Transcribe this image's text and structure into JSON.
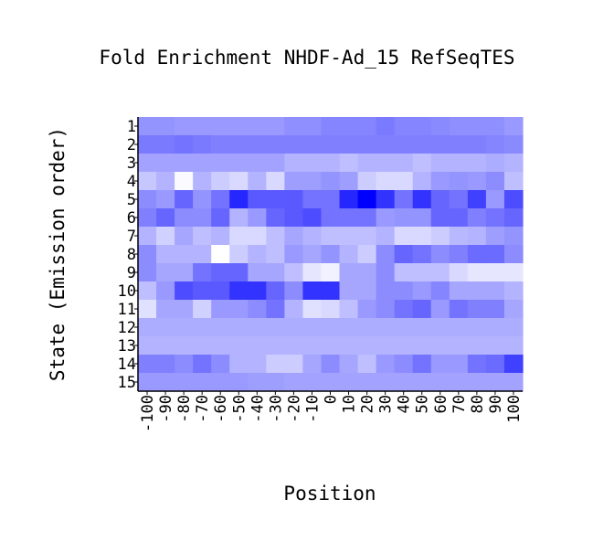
{
  "chart_data": {
    "type": "heatmap",
    "title": "Fold Enrichment NHDF-Ad_15 RefSeqTES",
    "xlabel": "Position",
    "ylabel": "State (Emission order)",
    "x": [
      "-100",
      "-90",
      "-80",
      "-70",
      "-60",
      "-50",
      "-40",
      "-30",
      "-20",
      "-10",
      "0",
      "10",
      "20",
      "30",
      "40",
      "50",
      "60",
      "70",
      "80",
      "90",
      "100"
    ],
    "y": [
      "1",
      "2",
      "3",
      "4",
      "5",
      "6",
      "7",
      "8",
      "9",
      "10",
      "11",
      "12",
      "13",
      "14",
      "15"
    ],
    "colorscale": {
      "low": "#ffffff",
      "high": "#0000ff"
    },
    "values": [
      [
        0.42,
        0.42,
        0.4,
        0.4,
        0.4,
        0.4,
        0.4,
        0.4,
        0.44,
        0.44,
        0.48,
        0.48,
        0.48,
        0.52,
        0.48,
        0.48,
        0.46,
        0.44,
        0.44,
        0.44,
        0.4
      ],
      [
        0.52,
        0.52,
        0.55,
        0.52,
        0.5,
        0.5,
        0.5,
        0.5,
        0.5,
        0.5,
        0.5,
        0.5,
        0.5,
        0.5,
        0.5,
        0.5,
        0.5,
        0.5,
        0.5,
        0.48,
        0.46
      ],
      [
        0.36,
        0.36,
        0.36,
        0.36,
        0.36,
        0.36,
        0.36,
        0.36,
        0.3,
        0.3,
        0.3,
        0.25,
        0.3,
        0.3,
        0.3,
        0.25,
        0.3,
        0.3,
        0.3,
        0.32,
        0.3
      ],
      [
        0.22,
        0.3,
        0.02,
        0.3,
        0.2,
        0.15,
        0.3,
        0.15,
        0.38,
        0.38,
        0.42,
        0.38,
        0.2,
        0.15,
        0.15,
        0.3,
        0.4,
        0.42,
        0.4,
        0.45,
        0.25
      ],
      [
        0.45,
        0.4,
        0.6,
        0.42,
        0.55,
        0.85,
        0.65,
        0.65,
        0.65,
        0.55,
        0.55,
        0.85,
        1.0,
        0.8,
        0.55,
        0.8,
        0.6,
        0.55,
        0.75,
        0.4,
        0.7
      ],
      [
        0.5,
        0.6,
        0.45,
        0.45,
        0.6,
        0.3,
        0.4,
        0.6,
        0.65,
        0.7,
        0.55,
        0.55,
        0.55,
        0.4,
        0.42,
        0.42,
        0.6,
        0.6,
        0.5,
        0.55,
        0.6
      ],
      [
        0.3,
        0.18,
        0.35,
        0.25,
        0.3,
        0.15,
        0.15,
        0.25,
        0.35,
        0.3,
        0.25,
        0.25,
        0.25,
        0.3,
        0.15,
        0.15,
        0.2,
        0.28,
        0.3,
        0.38,
        0.42
      ],
      [
        0.45,
        0.3,
        0.3,
        0.3,
        0.0,
        0.2,
        0.3,
        0.25,
        0.4,
        0.35,
        0.42,
        0.3,
        0.2,
        0.45,
        0.6,
        0.55,
        0.45,
        0.5,
        0.58,
        0.58,
        0.45
      ],
      [
        0.45,
        0.35,
        0.35,
        0.55,
        0.6,
        0.6,
        0.35,
        0.35,
        0.25,
        0.1,
        0.05,
        0.35,
        0.35,
        0.45,
        0.25,
        0.25,
        0.25,
        0.15,
        0.1,
        0.1,
        0.1
      ],
      [
        0.25,
        0.4,
        0.7,
        0.65,
        0.65,
        0.8,
        0.8,
        0.6,
        0.45,
        0.8,
        0.8,
        0.35,
        0.35,
        0.45,
        0.45,
        0.4,
        0.48,
        0.35,
        0.35,
        0.35,
        0.3
      ],
      [
        0.12,
        0.35,
        0.35,
        0.18,
        0.4,
        0.4,
        0.45,
        0.55,
        0.3,
        0.12,
        0.15,
        0.25,
        0.4,
        0.45,
        0.55,
        0.6,
        0.4,
        0.55,
        0.5,
        0.5,
        0.35
      ],
      [
        0.32,
        0.32,
        0.32,
        0.32,
        0.32,
        0.32,
        0.32,
        0.32,
        0.32,
        0.32,
        0.32,
        0.32,
        0.32,
        0.32,
        0.32,
        0.32,
        0.32,
        0.32,
        0.32,
        0.32,
        0.32
      ],
      [
        0.3,
        0.3,
        0.3,
        0.3,
        0.3,
        0.3,
        0.3,
        0.3,
        0.3,
        0.3,
        0.3,
        0.3,
        0.3,
        0.3,
        0.3,
        0.3,
        0.3,
        0.3,
        0.3,
        0.3,
        0.3
      ],
      [
        0.5,
        0.5,
        0.45,
        0.55,
        0.45,
        0.3,
        0.3,
        0.2,
        0.2,
        0.35,
        0.45,
        0.35,
        0.25,
        0.4,
        0.45,
        0.55,
        0.4,
        0.4,
        0.55,
        0.58,
        0.75
      ],
      [
        0.4,
        0.4,
        0.4,
        0.4,
        0.4,
        0.4,
        0.38,
        0.38,
        0.36,
        0.36,
        0.36,
        0.36,
        0.36,
        0.36,
        0.36,
        0.36,
        0.36,
        0.36,
        0.36,
        0.36,
        0.36
      ]
    ]
  }
}
